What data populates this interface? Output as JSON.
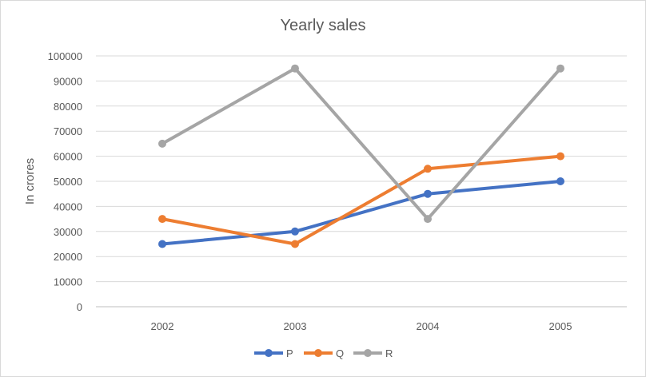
{
  "chart_data": {
    "type": "line",
    "title": "Yearly sales",
    "xlabel": "",
    "ylabel": "In crores",
    "categories": [
      "2002",
      "2003",
      "2004",
      "2005"
    ],
    "ylim": [
      0,
      100000
    ],
    "yticks": [
      0,
      10000,
      20000,
      30000,
      40000,
      50000,
      60000,
      70000,
      80000,
      90000,
      100000
    ],
    "grid": true,
    "legend_position": "bottom",
    "series": [
      {
        "name": "P",
        "color": "#4472C4",
        "values": [
          25000,
          30000,
          45000,
          50000
        ]
      },
      {
        "name": "Q",
        "color": "#ED7D31",
        "values": [
          35000,
          25000,
          55000,
          60000
        ]
      },
      {
        "name": "R",
        "color": "#A5A5A5",
        "values": [
          65000,
          95000,
          35000,
          95000
        ]
      }
    ]
  }
}
